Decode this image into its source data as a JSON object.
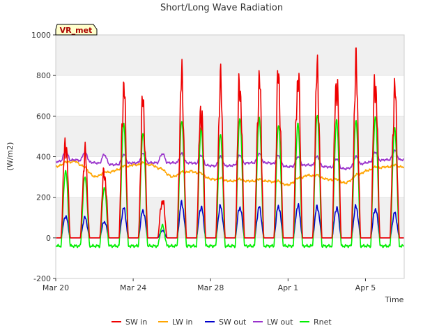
{
  "chart_data": {
    "type": "line",
    "title": "Short/Long Wave Radiation",
    "xlabel": "Time",
    "ylabel": "(W/m2)",
    "site_badge": "VR_met",
    "xlim": [
      "2023-03-20",
      "2023-04-07"
    ],
    "ylim": [
      -200,
      1000
    ],
    "yticks": [
      -200,
      0,
      200,
      400,
      600,
      800,
      1000
    ],
    "xticks": [
      {
        "date": "2023-03-20",
        "label": "Mar 20"
      },
      {
        "date": "2023-03-24",
        "label": "Mar 24"
      },
      {
        "date": "2023-03-28",
        "label": "Mar 28"
      },
      {
        "date": "2023-04-01",
        "label": "Apr 1"
      },
      {
        "date": "2023-04-05",
        "label": "Apr 5"
      }
    ],
    "grid": "horizontal bands",
    "legend_position": "bottom",
    "day_dates": [
      "2023-03-20",
      "2023-03-21",
      "2023-03-22",
      "2023-03-23",
      "2023-03-24",
      "2023-03-25",
      "2023-03-26",
      "2023-03-27",
      "2023-03-28",
      "2023-03-29",
      "2023-03-30",
      "2023-03-31",
      "2023-04-01",
      "2023-04-02",
      "2023-04-03",
      "2023-04-04",
      "2023-04-05",
      "2023-04-06"
    ],
    "series": [
      {
        "name": "SW in",
        "color": "#ee0000",
        "daily_peak": [
          560,
          480,
          380,
          860,
          780,
          220,
          900,
          760,
          870,
          900,
          900,
          930,
          940,
          930,
          920,
          960,
          915,
          840
        ]
      },
      {
        "name": "LW in",
        "color": "#ffa500",
        "daily_level": [
          350,
          380,
          300,
          330,
          360,
          360,
          300,
          330,
          290,
          280,
          280,
          280,
          260,
          310,
          290,
          270,
          330,
          350
        ]
      },
      {
        "name": "SW out",
        "color": "#0000cc",
        "daily_peak": [
          120,
          110,
          90,
          160,
          150,
          40,
          190,
          170,
          170,
          170,
          165,
          175,
          175,
          170,
          165,
          170,
          160,
          135
        ]
      },
      {
        "name": "LW out",
        "color": "#9932cc",
        "daily_level": [
          375,
          385,
          370,
          360,
          370,
          370,
          370,
          370,
          355,
          355,
          370,
          370,
          350,
          360,
          350,
          340,
          370,
          385
        ]
      },
      {
        "name": "Rnet",
        "color": "#00ee00",
        "daily_peak": [
          330,
          300,
          250,
          560,
          520,
          60,
          580,
          540,
          510,
          590,
          590,
          560,
          560,
          610,
          580,
          580,
          600,
          540
        ],
        "night_level": -40
      }
    ]
  }
}
